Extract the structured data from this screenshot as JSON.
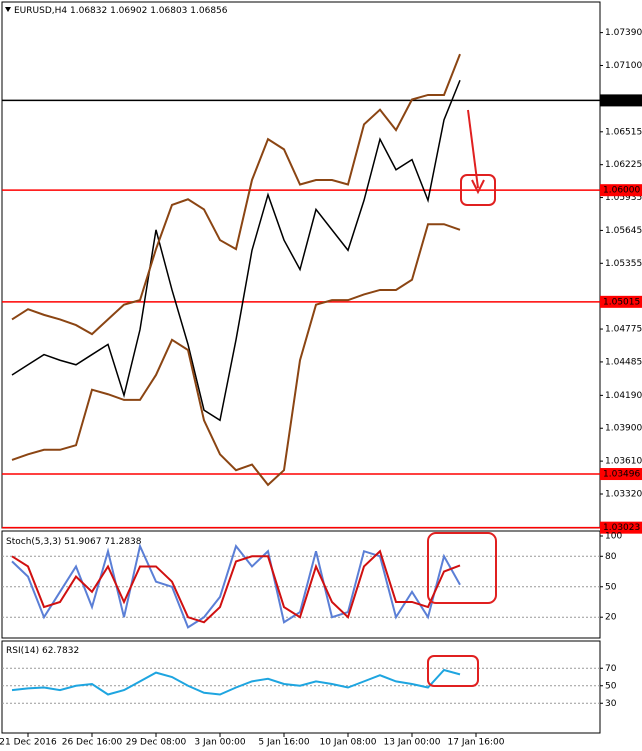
{
  "chart_data": [
    {
      "type": "line",
      "title": "EURUSD,H4",
      "open": 1.06832,
      "high": 1.06902,
      "low": 1.06803,
      "close": 1.06856,
      "categories": [
        null,
        "21 Dec 2016",
        null,
        null,
        null,
        "26 Dec 16:00",
        null,
        null,
        null,
        "29 Dec 08:00",
        null,
        null,
        null,
        "3 Jan 00:00",
        null,
        null,
        null,
        "5 Jan 16:00",
        null,
        null,
        null,
        "10 Jan 08:00",
        null,
        null,
        null,
        "13 Jan 00:00",
        null,
        null,
        null,
        "17 Jan 16:00",
        null,
        null,
        null,
        null,
        null,
        null,
        null
      ],
      "ylim": [
        1.0302,
        1.0766
      ],
      "yticks": [
        {
          "value": 1.0739,
          "label": "1.07390"
        },
        {
          "value": 1.071,
          "label": "1.07100"
        },
        1.06515,
        1.06225,
        1.05935,
        1.05645,
        1.05355,
        1.04775,
        1.04485,
        {
          "value": 1.0419,
          "label": "1.04190"
        },
        {
          "value": 1.039,
          "label": "1.03900"
        },
        {
          "value": 1.0361,
          "label": "1.03610"
        },
        {
          "value": 1.0332,
          "label": "1.03320"
        }
      ],
      "levels": [
        {
          "value": 1.06792,
          "color": "#000000"
        },
        {
          "value": 1.06,
          "label": "1.06000",
          "color": "#ff0000"
        },
        {
          "value": 1.05015,
          "color": "#ff0000"
        },
        {
          "value": 1.03496,
          "color": "#ff0000"
        },
        {
          "value": 1.03023,
          "color": "#ff0000"
        }
      ],
      "series": [
        {
          "color": "#000000",
          "values": [
            1.0437,
            1.0446,
            1.0455,
            1.045,
            1.0446,
            1.0455,
            1.0464,
            1.0419,
            1.0477,
            1.0565,
            1.0512,
            1.0464,
            1.0406,
            1.0397,
            1.0468,
            1.0547,
            1.0596,
            1.0556,
            1.053,
            1.0583,
            1.0565,
            1.0547,
            1.0591,
            1.0645,
            1.0618,
            1.0627,
            1.0591,
            1.0662,
            1.0697,
            null,
            null,
            null,
            null,
            null,
            null,
            null,
            null
          ]
        },
        {
          "color": "#8b4513",
          "values": [
            1.0486,
            1.0495,
            1.049,
            1.0486,
            1.0481,
            1.0473,
            1.0486,
            1.0499,
            1.0503,
            1.0548,
            1.0587,
            1.0592,
            1.0583,
            1.0556,
            1.0548,
            1.0609,
            1.0645,
            1.0636,
            1.0605,
            1.0609,
            1.0609,
            1.0605,
            1.0658,
            1.0671,
            1.0653,
            1.068,
            1.0684,
            1.0684,
            1.072,
            null,
            null,
            null,
            null,
            null,
            null,
            null,
            null
          ]
        },
        {
          "color": "#8b4513",
          "values": [
            1.0362,
            1.0367,
            1.0371,
            1.0371,
            1.0375,
            1.0424,
            1.042,
            1.0415,
            1.0415,
            1.0437,
            1.0468,
            1.0459,
            1.0397,
            1.0367,
            1.0353,
            1.0358,
            1.034,
            1.0353,
            1.045,
            1.0499,
            1.0503,
            1.0503,
            1.0508,
            1.0512,
            1.0512,
            1.0521,
            1.057,
            1.057,
            1.0565,
            null,
            null,
            null,
            null,
            null,
            null,
            null,
            null
          ]
        }
      ]
    },
    {
      "type": "line",
      "title": "Stoch(5,3,3)",
      "main": 51.9067,
      "signal": 71.2838,
      "ylim": [
        0,
        100
      ],
      "yticks": [
        100,
        80,
        50,
        20
      ],
      "grid": [
        80,
        50,
        20
      ],
      "series": [
        {
          "color": "#5b7fd6",
          "values": [
            75,
            60,
            20,
            45,
            70,
            30,
            85,
            20,
            90,
            55,
            50,
            10,
            20,
            40,
            90,
            70,
            85,
            15,
            25,
            85,
            20,
            25,
            85,
            80,
            20,
            45,
            20,
            80,
            52,
            null,
            null,
            null,
            null,
            null,
            null,
            null,
            null
          ]
        },
        {
          "color": "#d01010",
          "values": [
            80,
            70,
            30,
            35,
            60,
            45,
            70,
            35,
            70,
            70,
            55,
            20,
            15,
            30,
            75,
            80,
            80,
            30,
            20,
            70,
            35,
            20,
            70,
            85,
            35,
            35,
            30,
            65,
            71,
            null,
            null,
            null,
            null,
            null,
            null,
            null,
            null
          ]
        }
      ]
    },
    {
      "type": "line",
      "title": "RSI(14)",
      "current": 62.7832,
      "ylim": [
        0,
        100
      ],
      "yticks": [
        70,
        50,
        30
      ],
      "grid": [
        70,
        50,
        30
      ],
      "series": [
        {
          "color": "#1ea5e0",
          "values": [
            45,
            47,
            48,
            45,
            50,
            52,
            40,
            45,
            55,
            65,
            60,
            50,
            42,
            40,
            48,
            55,
            58,
            52,
            50,
            55,
            52,
            48,
            55,
            62,
            55,
            52,
            48,
            68,
            63,
            null,
            null,
            null,
            null,
            null,
            null,
            null,
            null
          ]
        }
      ]
    }
  ]
}
